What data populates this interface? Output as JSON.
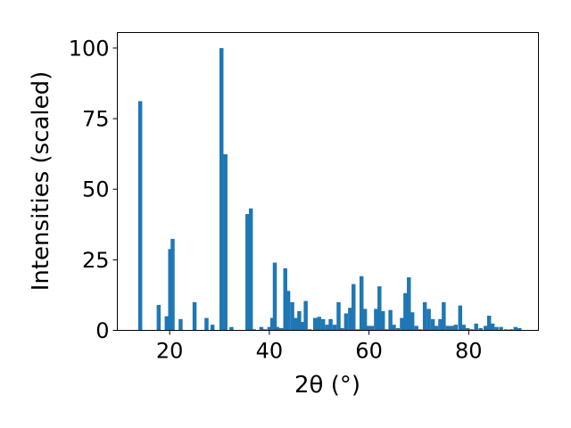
{
  "chart_data": {
    "type": "bar",
    "title": "",
    "xlabel": "2θ (°)",
    "ylabel": "Intensities (scaled)",
    "xlim": [
      9.5,
      94
    ],
    "ylim": [
      0,
      105.5
    ],
    "xticks": [
      20,
      40,
      60,
      80
    ],
    "yticks": [
      0,
      25,
      50,
      75,
      100
    ],
    "grid": false,
    "bar_color": "#1f77b4",
    "bar_width": 0.8,
    "series": [
      {
        "x": [
          14.1,
          17.8,
          19.4,
          20.1,
          20.6,
          22.2,
          25.0,
          27.4,
          28.6,
          30.4,
          31.2,
          32.4,
          35.6,
          36.3,
          36.9,
          38.4,
          39.1,
          40.0,
          40.6,
          41.1,
          41.6,
          42.4,
          43.2,
          43.8,
          44.6,
          45.3,
          46.0,
          46.6,
          47.3,
          48.1,
          49.2,
          50.0,
          50.8,
          51.6,
          52.3,
          53.1,
          53.9,
          54.6,
          55.4,
          56.2,
          56.9,
          57.7,
          58.5,
          59.2,
          59.9,
          60.6,
          61.4,
          62.1,
          62.8,
          63.5,
          64.3,
          65.0,
          65.8,
          66.6,
          67.3,
          68.0,
          68.7,
          69.5,
          70.3,
          71.2,
          72.0,
          72.8,
          73.5,
          74.3,
          75.0,
          75.8,
          76.6,
          77.4,
          78.3,
          79.0,
          79.8,
          80.6,
          81.5,
          82.4,
          83.4,
          84.1,
          84.8,
          85.6,
          86.5,
          87.5,
          88.5,
          89.4,
          90.2
        ],
        "values": [
          81.2,
          9.0,
          5.0,
          28.8,
          32.4,
          4.0,
          10.0,
          4.4,
          2.0,
          100.0,
          62.4,
          1.2,
          41.2,
          43.2,
          0.4,
          1.2,
          0.4,
          1.2,
          4.4,
          24.0,
          1.2,
          0.8,
          22.0,
          14.0,
          10.0,
          4.4,
          6.8,
          3.0,
          10.4,
          0.4,
          4.4,
          4.8,
          4.0,
          2.0,
          4.0,
          2.0,
          10.0,
          0.8,
          6.0,
          8.0,
          16.4,
          0.4,
          19.2,
          7.6,
          1.6,
          1.6,
          7.6,
          15.6,
          6.8,
          0.4,
          7.2,
          2.0,
          0.8,
          4.4,
          13.2,
          18.8,
          6.4,
          1.6,
          0.4,
          10.0,
          7.6,
          4.0,
          1.6,
          4.0,
          10.0,
          1.6,
          1.6,
          2.0,
          8.8,
          2.0,
          0.8,
          0.4,
          2.4,
          0.8,
          1.6,
          5.2,
          2.4,
          1.2,
          1.2,
          0.4,
          0.4,
          1.2,
          0.8
        ]
      }
    ]
  }
}
